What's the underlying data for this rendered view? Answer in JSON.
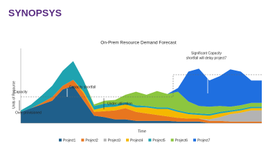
{
  "logo": "SYNOPSYS",
  "chart_data": {
    "type": "stacked-area",
    "title": "On-Prem Resource Demand Forecast",
    "x_label": "Time",
    "y_label": "Units of Resource",
    "categories": [
      null,
      null,
      null,
      null,
      null,
      null,
      null,
      null,
      null,
      null,
      null,
      null,
      null,
      null,
      null,
      null,
      null,
      null,
      null,
      null,
      null,
      null,
      null,
      null
    ],
    "ylim": [
      0,
      100
    ],
    "series": [
      {
        "name": "Project1",
        "color": "#1f5f8b",
        "values": [
          15,
          20,
          25,
          30,
          45,
          50,
          30,
          10,
          8,
          5,
          5,
          3,
          3,
          3,
          3,
          2,
          2,
          2,
          0,
          0,
          0,
          0,
          0,
          0
        ]
      },
      {
        "name": "Project2",
        "color": "#e8761f",
        "values": [
          0,
          0,
          2,
          5,
          5,
          8,
          10,
          5,
          8,
          12,
          15,
          12,
          10,
          8,
          6,
          5,
          4,
          4,
          3,
          3,
          2,
          2,
          2,
          2
        ]
      },
      {
        "name": "Project3",
        "color": "#b3b3b3",
        "values": [
          0,
          0,
          0,
          0,
          0,
          0,
          0,
          0,
          0,
          0,
          0,
          0,
          0,
          0,
          0,
          0,
          0,
          0,
          2,
          5,
          10,
          12,
          15,
          15
        ]
      },
      {
        "name": "Project4",
        "color": "#f5b800",
        "values": [
          0,
          0,
          0,
          0,
          0,
          0,
          2,
          3,
          5,
          5,
          5,
          6,
          8,
          8,
          10,
          8,
          6,
          5,
          5,
          5,
          3,
          3,
          3,
          3
        ]
      },
      {
        "name": "Project5",
        "color": "#1fa3b0",
        "values": [
          2,
          5,
          10,
          15,
          20,
          25,
          15,
          5,
          5,
          3,
          3,
          3,
          2,
          2,
          2,
          2,
          2,
          2,
          2,
          2,
          2,
          2,
          2,
          2
        ]
      },
      {
        "name": "Project6",
        "color": "#8cc63f",
        "values": [
          0,
          0,
          0,
          0,
          0,
          0,
          0,
          2,
          4,
          6,
          10,
          18,
          15,
          22,
          18,
          25,
          15,
          10,
          10,
          8,
          5,
          5,
          5,
          5
        ]
      },
      {
        "name": "Project7",
        "color": "#1f6fe0",
        "values": [
          0,
          0,
          0,
          0,
          0,
          0,
          0,
          0,
          0,
          0,
          0,
          0,
          0,
          0,
          0,
          5,
          40,
          50,
          35,
          40,
          50,
          45,
          30,
          30
        ]
      }
    ],
    "annotations": [
      "Capacity",
      "Capacity shortfall",
      "Under utilization",
      "Over provisioned",
      "Significant Capacity",
      "shortfall will delay project7"
    ]
  }
}
